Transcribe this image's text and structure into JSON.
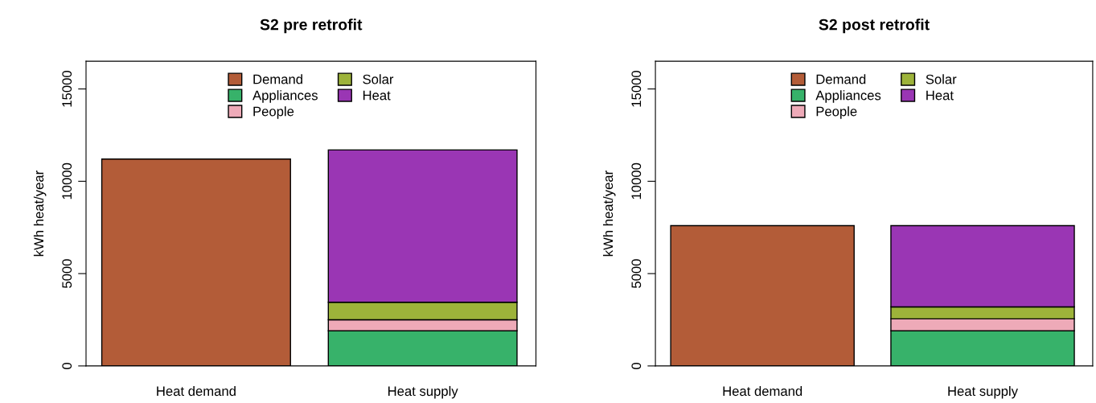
{
  "chart_data": [
    {
      "type": "bar",
      "title": "S2 pre retrofit",
      "ylabel": "kWh heat/year",
      "categories": [
        "Heat demand",
        "Heat supply"
      ],
      "stacked": true,
      "ylim": [
        0,
        16500
      ],
      "yticks": [
        0,
        5000,
        10000,
        15000
      ],
      "legend": "top",
      "grid": false,
      "series": [
        {
          "name": "Demand",
          "color": "#b35c38",
          "values": [
            11200,
            null
          ]
        },
        {
          "name": "Appliances",
          "color": "#37b26a",
          "values": [
            null,
            1900
          ]
        },
        {
          "name": "People",
          "color": "#eeaab8",
          "values": [
            null,
            600
          ]
        },
        {
          "name": "Solar",
          "color": "#9db33a",
          "values": [
            null,
            950
          ]
        },
        {
          "name": "Heat",
          "color": "#9a36b4",
          "values": [
            null,
            8250
          ]
        }
      ]
    },
    {
      "type": "bar",
      "title": "S2 post retrofit",
      "ylabel": "kWh heat/year",
      "categories": [
        "Heat demand",
        "Heat supply"
      ],
      "stacked": true,
      "ylim": [
        0,
        16500
      ],
      "yticks": [
        0,
        5000,
        10000,
        15000
      ],
      "legend": "top",
      "grid": false,
      "series": [
        {
          "name": "Demand",
          "color": "#b35c38",
          "values": [
            7600,
            null
          ]
        },
        {
          "name": "Appliances",
          "color": "#37b26a",
          "values": [
            null,
            1900
          ]
        },
        {
          "name": "People",
          "color": "#eeaab8",
          "values": [
            null,
            650
          ]
        },
        {
          "name": "Solar",
          "color": "#9db33a",
          "values": [
            null,
            650
          ]
        },
        {
          "name": "Heat",
          "color": "#9a36b4",
          "values": [
            null,
            4400
          ]
        }
      ]
    }
  ]
}
